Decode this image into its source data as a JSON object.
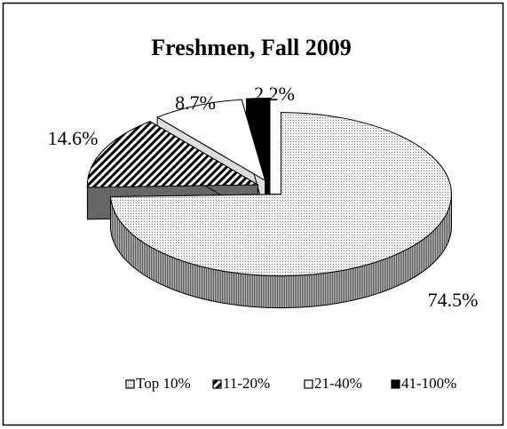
{
  "chart_data": {
    "type": "pie3d",
    "title": "Freshmen, Fall 2009",
    "categories": [
      "Top 10%",
      "11-20%",
      "21-40%",
      "41-100%"
    ],
    "values": [
      74.5,
      14.6,
      8.7,
      2.2
    ],
    "value_labels": [
      "74.5%",
      "14.6%",
      "8.7%",
      "2.2%"
    ],
    "legend": "bottom"
  }
}
